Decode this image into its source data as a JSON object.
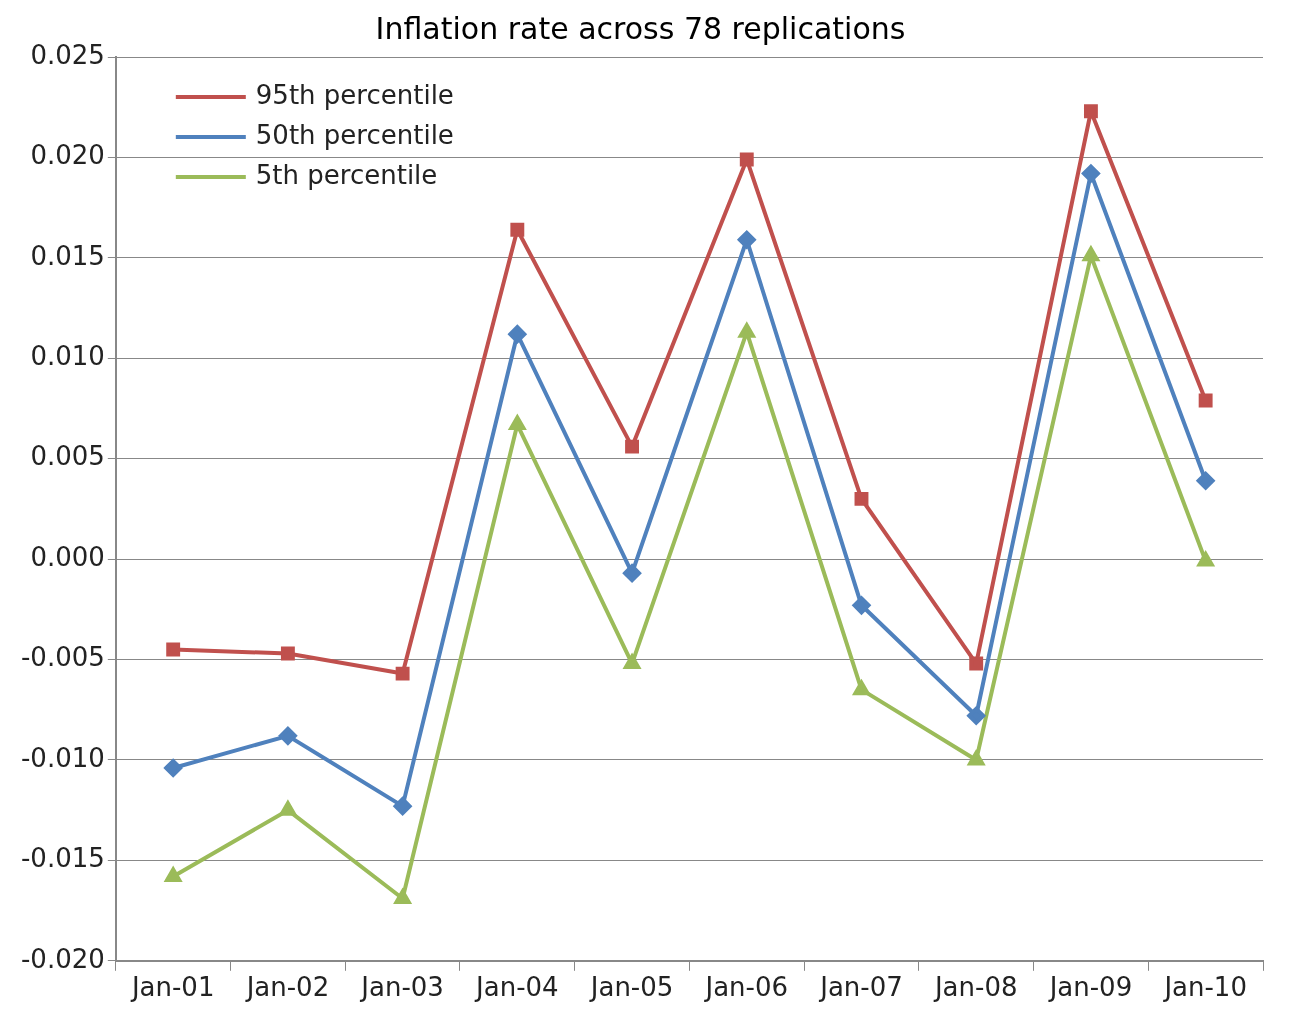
{
  "chart_data": {
    "type": "line",
    "title": "Inflation rate across 78 replications",
    "categories": [
      "Jan-01",
      "Jan-02",
      "Jan-03",
      "Jan-04",
      "Jan-05",
      "Jan-06",
      "Jan-07",
      "Jan-08",
      "Jan-09",
      "Jan-10"
    ],
    "series": [
      {
        "name": "95th percentile",
        "color": "#c0504d",
        "marker": "square",
        "values": [
          -0.0045,
          -0.0047,
          -0.0057,
          0.0164,
          0.0056,
          0.0199,
          0.003,
          -0.0052,
          0.0223,
          0.0079
        ]
      },
      {
        "name": "50th percentile",
        "color": "#4f81bd",
        "marker": "diamond",
        "values": [
          -0.0104,
          -0.0088,
          -0.0123,
          0.0112,
          -0.0007,
          0.0159,
          -0.0023,
          -0.0078,
          0.0192,
          0.0039
        ]
      },
      {
        "name": "5th percentile",
        "color": "#9bbb59",
        "marker": "triangle",
        "values": [
          -0.0158,
          -0.0125,
          -0.0169,
          0.0067,
          -0.0052,
          0.0113,
          -0.0065,
          -0.01,
          0.0151,
          -0.0001
        ]
      }
    ],
    "ylim": [
      -0.02,
      0.025
    ],
    "yticks": [
      {
        "value": -0.02,
        "label": "-0.020"
      },
      {
        "value": -0.015,
        "label": "-0.015"
      },
      {
        "value": -0.01,
        "label": "-0.010"
      },
      {
        "value": -0.005,
        "label": "-0.005"
      },
      {
        "value": 0,
        "label": "0.000"
      },
      {
        "value": 0.005,
        "label": "0.005"
      },
      {
        "value": 0.01,
        "label": "0.010"
      },
      {
        "value": 0.015,
        "label": "0.015"
      },
      {
        "value": 0.02,
        "label": "0.020"
      },
      {
        "value": 0.025,
        "label": "0.025"
      }
    ],
    "grid": "y",
    "legend": "top left",
    "line_style": "solid"
  }
}
